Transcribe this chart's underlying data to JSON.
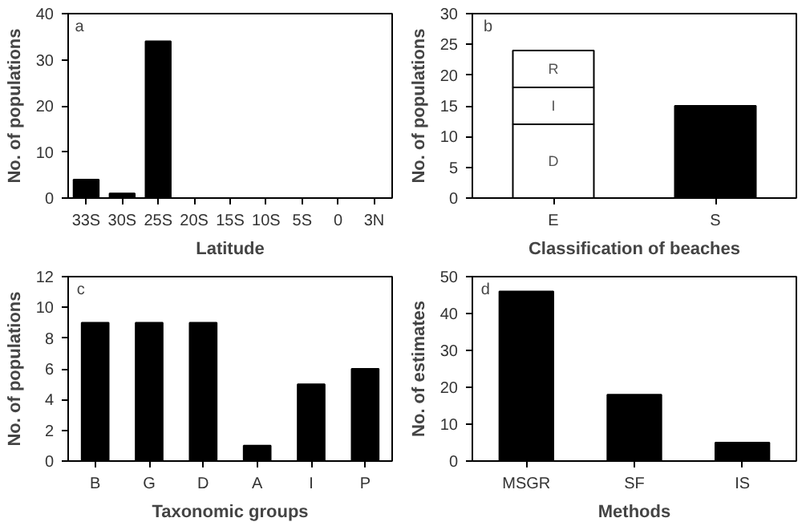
{
  "chart_data": [
    {
      "type": "bar",
      "annotations": [
        "a"
      ],
      "xlabel": "Latitude",
      "ylabel": "No. of populations",
      "categories": [
        "33S",
        "30S",
        "25S",
        "20S",
        "15S",
        "10S",
        "5S",
        "0",
        "3N"
      ],
      "values": [
        4,
        1,
        34,
        0,
        0,
        0,
        0,
        0,
        0
      ],
      "color": "#000000",
      "ylim": [
        0,
        40
      ],
      "yticks": [
        0,
        10,
        20,
        30,
        40
      ],
      "grid": false
    },
    {
      "type": "bar",
      "annotations": [
        "b"
      ],
      "xlabel": "Classification of beaches",
      "ylabel": "No. of populations",
      "categories": [
        "E",
        "S"
      ],
      "stacked": true,
      "series": [
        {
          "name": "D",
          "color": "#ffffff",
          "values": [
            12,
            null
          ]
        },
        {
          "name": "I",
          "color": "#ffffff",
          "values": [
            6,
            null
          ]
        },
        {
          "name": "R",
          "color": "#ffffff",
          "values": [
            6,
            null
          ]
        },
        {
          "color": "#000000",
          "values": [
            null,
            15
          ]
        }
      ],
      "ylim": [
        0,
        30
      ],
      "yticks": [
        0,
        5,
        10,
        15,
        20,
        25,
        30
      ],
      "grid": false
    },
    {
      "type": "bar",
      "annotations": [
        "c"
      ],
      "xlabel": "Taxonomic groups",
      "ylabel": "No. of populations",
      "categories": [
        "B",
        "G",
        "D",
        "A",
        "I",
        "P"
      ],
      "values": [
        9,
        9,
        9,
        1,
        5,
        6
      ],
      "color": "#000000",
      "ylim": [
        0,
        12
      ],
      "yticks": [
        0,
        2,
        4,
        6,
        8,
        10,
        12
      ],
      "grid": false
    },
    {
      "type": "bar",
      "annotations": [
        "d"
      ],
      "xlabel": "Methods",
      "ylabel": "No. of estimates",
      "categories": [
        "MSGR",
        "SF",
        "IS"
      ],
      "values": [
        46,
        18,
        5
      ],
      "color": "#000000",
      "ylim": [
        0,
        50
      ],
      "yticks": [
        0,
        10,
        20,
        30,
        40,
        50
      ],
      "grid": false
    }
  ]
}
